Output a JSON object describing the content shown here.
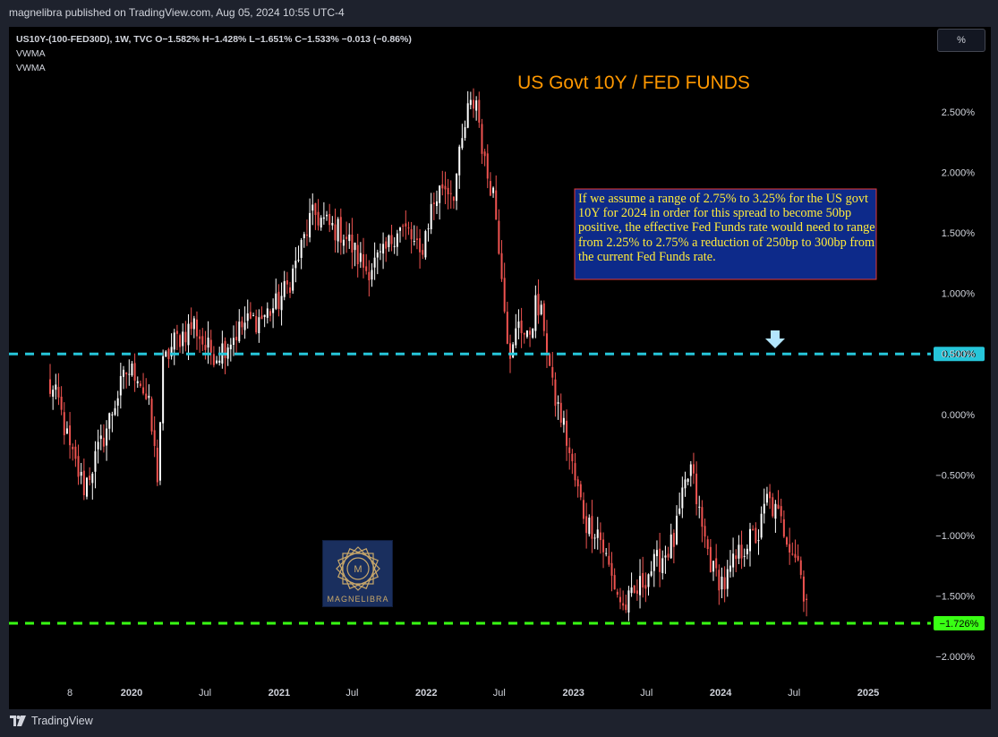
{
  "header": {
    "publisher": "magnelibra published on TradingView.com, Aug 05, 2024 10:55 UTC-4"
  },
  "legend": {
    "symbol_line": "US10Y-(100-FED30D), 1W, TVC O−1.582% H−1.428% L−1.651% C−1.533% −0.013 (−0.86%)",
    "indicator_1": "VWMA",
    "indicator_2": "VWMA"
  },
  "toolbar": {
    "scale_button": "%"
  },
  "footer": {
    "brand": "TradingView"
  },
  "logo": {
    "text": "MAGNELIBRA"
  },
  "chart_data": {
    "type": "candlestick",
    "title": "US Govt 10Y / FED FUNDS",
    "annotation": "If we assume a range of 2.75% to 3.25% for the US govt 10Y for 2024 in order for this spread to become 50bp positive, the effective Fed Funds rate would need to range from 2.25% to 2.75% a reduction of 250bp to 300bp from the current Fed Funds rate.",
    "y_axis": {
      "ticks": [
        2.5,
        2.0,
        1.5,
        1.0,
        0.5,
        0.0,
        -0.5,
        -1.0,
        -1.5,
        -2.0
      ],
      "tick_labels": [
        "2.500%",
        "2.000%",
        "1.500%",
        "1.000%",
        "0.500%",
        "0.000%",
        "−0.500%",
        "−1.000%",
        "−1.500%",
        "−2.000%"
      ],
      "range": [
        -2.1,
        2.9
      ]
    },
    "x_axis": {
      "labels": [
        "8",
        "2020",
        "Jul",
        "2021",
        "Jul",
        "2022",
        "Jul",
        "2023",
        "Jul",
        "2024",
        "Jul",
        "2025"
      ],
      "dates": [
        "2019-08-01",
        "2020-01-01",
        "2020-07-01",
        "2021-01-01",
        "2021-07-01",
        "2022-01-01",
        "2022-07-01",
        "2023-01-01",
        "2023-07-01",
        "2024-01-01",
        "2024-07-01",
        "2025-01-01"
      ]
    },
    "horizontal_lines": [
      {
        "value": 0.5,
        "label": "0.500%",
        "color": "#26c6da"
      },
      {
        "value": -1.726,
        "label": "−1.726%",
        "color": "#39ff14"
      }
    ],
    "last_value": -1.533,
    "colors": {
      "up": "#ffffff",
      "down": "#ef5350",
      "title": "#ff9800",
      "annotation_bg": "#0d2a8a",
      "annotation_border": "#e53935"
    },
    "anchors": [
      [
        "2019-06-06",
        0.25
      ],
      [
        "2019-07-04",
        0.1
      ],
      [
        "2019-08-01",
        -0.3
      ],
      [
        "2019-09-05",
        -0.6
      ],
      [
        "2019-10-17",
        -0.25
      ],
      [
        "2019-11-21",
        0.1
      ],
      [
        "2019-12-19",
        0.35
      ],
      [
        "2020-01-16",
        0.35
      ],
      [
        "2020-02-13",
        0.05
      ],
      [
        "2020-03-05",
        -0.5
      ],
      [
        "2020-03-19",
        0.4
      ],
      [
        "2020-04-16",
        0.6
      ],
      [
        "2020-06-04",
        0.75
      ],
      [
        "2020-07-02",
        0.55
      ],
      [
        "2020-07-30",
        0.5
      ],
      [
        "2020-08-27",
        0.6
      ],
      [
        "2020-10-08",
        0.75
      ],
      [
        "2020-11-19",
        0.8
      ],
      [
        "2020-12-24",
        0.9
      ],
      [
        "2021-01-21",
        1.05
      ],
      [
        "2021-02-18",
        1.3
      ],
      [
        "2021-03-18",
        1.6
      ],
      [
        "2021-04-01",
        1.65
      ],
      [
        "2021-05-06",
        1.55
      ],
      [
        "2021-06-10",
        1.5
      ],
      [
        "2021-07-15",
        1.3
      ],
      [
        "2021-08-05",
        1.2
      ],
      [
        "2021-09-16",
        1.3
      ],
      [
        "2021-10-21",
        1.55
      ],
      [
        "2021-11-18",
        1.5
      ],
      [
        "2021-12-16",
        1.3
      ],
      [
        "2022-01-13",
        1.7
      ],
      [
        "2022-02-10",
        1.9
      ],
      [
        "2022-03-10",
        1.85
      ],
      [
        "2022-04-14",
        2.5
      ],
      [
        "2022-05-05",
        2.6
      ],
      [
        "2022-05-26",
        2.05
      ],
      [
        "2022-06-16",
        1.85
      ],
      [
        "2022-07-07",
        1.2
      ],
      [
        "2022-07-28",
        0.4
      ],
      [
        "2022-08-18",
        0.8
      ],
      [
        "2022-09-08",
        0.6
      ],
      [
        "2022-09-29",
        0.9
      ],
      [
        "2022-10-20",
        0.75
      ],
      [
        "2022-11-10",
        0.2
      ],
      [
        "2022-12-08",
        -0.1
      ],
      [
        "2023-01-05",
        -0.55
      ],
      [
        "2023-02-02",
        -0.9
      ],
      [
        "2023-03-02",
        -0.95
      ],
      [
        "2023-04-06",
        -1.35
      ],
      [
        "2023-05-04",
        -1.6
      ],
      [
        "2023-06-01",
        -1.5
      ],
      [
        "2023-07-06",
        -1.3
      ],
      [
        "2023-08-03",
        -1.2
      ],
      [
        "2023-09-07",
        -1.05
      ],
      [
        "2023-10-05",
        -0.6
      ],
      [
        "2023-10-19",
        -0.45
      ],
      [
        "2023-11-16",
        -0.95
      ],
      [
        "2023-12-14",
        -1.3
      ],
      [
        "2024-01-11",
        -1.4
      ],
      [
        "2024-02-08",
        -1.2
      ],
      [
        "2024-03-07",
        -1.05
      ],
      [
        "2024-04-04",
        -1.0
      ],
      [
        "2024-04-25",
        -0.7
      ],
      [
        "2024-05-23",
        -0.85
      ],
      [
        "2024-06-20",
        -1.05
      ],
      [
        "2024-07-11",
        -1.2
      ],
      [
        "2024-07-25",
        -1.45
      ],
      [
        "2024-08-01",
        -1.533
      ]
    ]
  }
}
